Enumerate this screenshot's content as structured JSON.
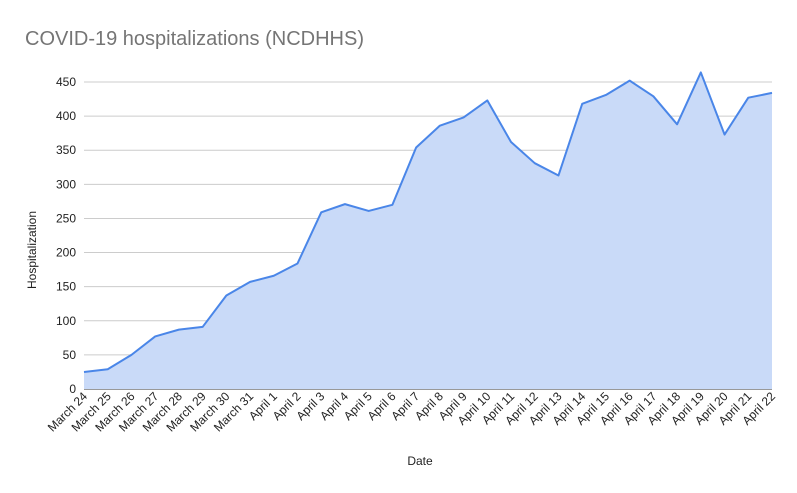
{
  "chart_data": {
    "type": "area",
    "title": "COVID-19 hospitalizations (NCDHHS)",
    "xlabel": "Date",
    "ylabel": "Hospitalization",
    "ylim": [
      0,
      450
    ],
    "yticks": [
      0,
      50,
      100,
      150,
      200,
      250,
      300,
      350,
      400,
      450
    ],
    "grid": true,
    "categories": [
      "March 24",
      "March 25",
      "March 26",
      "March 27",
      "March 28",
      "March 29",
      "March 30",
      "March 31",
      "April 1",
      "April 2",
      "April 3",
      "April 4",
      "April 5",
      "April 6",
      "April 7",
      "April 8",
      "April 9",
      "April 10",
      "April 11",
      "April 12",
      "April 13",
      "April 14",
      "April 15",
      "April 16",
      "April 17",
      "April 18",
      "April 19",
      "April 20",
      "April 21",
      "April 22"
    ],
    "series": [
      {
        "values": [
          25,
          29,
          50,
          77,
          87,
          91,
          137,
          157,
          166,
          184,
          259,
          271,
          261,
          270,
          354,
          386,
          398,
          423,
          362,
          331,
          313,
          418,
          431,
          452,
          429,
          388,
          464,
          373,
          427,
          434
        ],
        "line_color": "#4a86e8",
        "fill_color": "#c9daf8"
      }
    ]
  }
}
